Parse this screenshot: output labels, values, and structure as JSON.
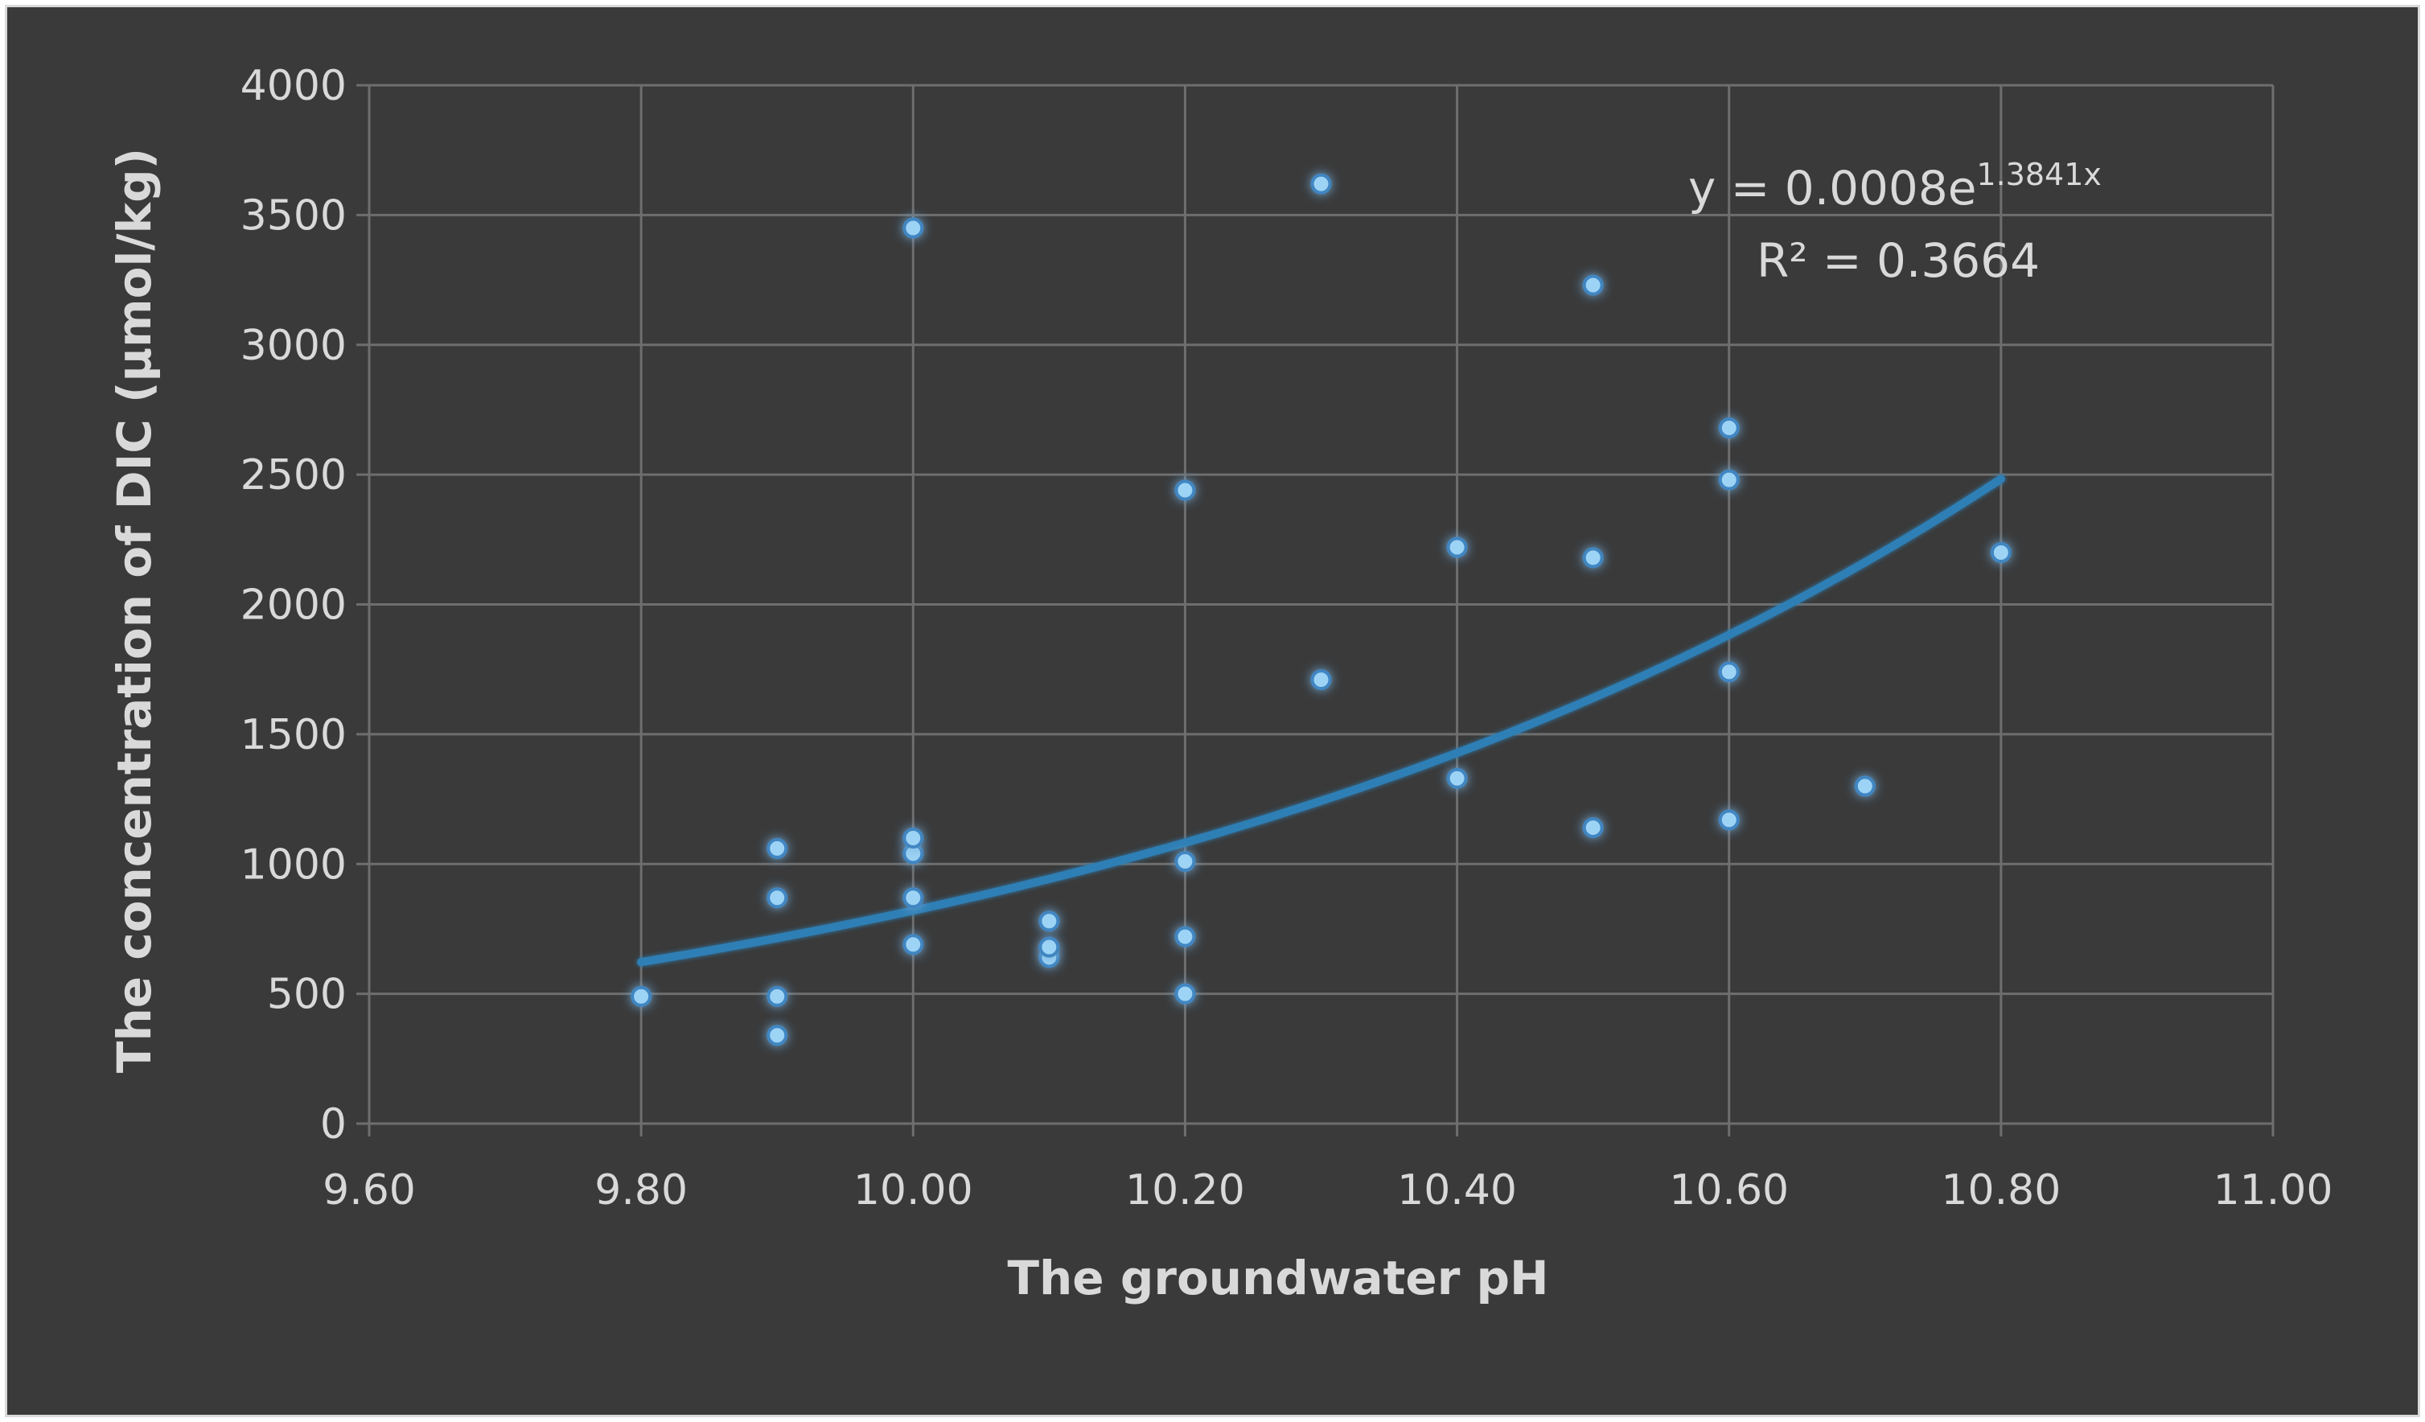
{
  "chart_data": {
    "type": "scatter",
    "xlabel": "The groundwater pH",
    "ylabel": "The concentration of DIC  (μmol/kg)",
    "xlim": [
      9.6,
      11.0
    ],
    "ylim": [
      0,
      4000
    ],
    "x_ticks": [
      9.6,
      9.8,
      10.0,
      10.2,
      10.4,
      10.6,
      10.8,
      11.0
    ],
    "x_tick_labels": [
      "9.60",
      "9.80",
      "10.00",
      "10.20",
      "10.40",
      "10.60",
      "10.80",
      "11.00"
    ],
    "y_ticks": [
      0,
      500,
      1000,
      1500,
      2000,
      2500,
      3000,
      3500,
      4000
    ],
    "y_tick_labels": [
      "0",
      "500",
      "1000",
      "1500",
      "2000",
      "2500",
      "3000",
      "3500",
      "4000"
    ],
    "grid": true,
    "marker_color": "#9dd3f5",
    "trendline_color": "#2e7fb5",
    "background_color": "#3a3a3a",
    "series": [
      {
        "points": [
          {
            "x": 9.8,
            "y": 490
          },
          {
            "x": 9.9,
            "y": 340
          },
          {
            "x": 9.9,
            "y": 490
          },
          {
            "x": 9.9,
            "y": 870
          },
          {
            "x": 9.9,
            "y": 1060
          },
          {
            "x": 10.0,
            "y": 690
          },
          {
            "x": 10.0,
            "y": 870
          },
          {
            "x": 10.0,
            "y": 1040
          },
          {
            "x": 10.0,
            "y": 1100
          },
          {
            "x": 10.0,
            "y": 3450
          },
          {
            "x": 10.1,
            "y": 640
          },
          {
            "x": 10.1,
            "y": 680
          },
          {
            "x": 10.1,
            "y": 780
          },
          {
            "x": 10.2,
            "y": 500
          },
          {
            "x": 10.2,
            "y": 720
          },
          {
            "x": 10.2,
            "y": 1010
          },
          {
            "x": 10.2,
            "y": 2440
          },
          {
            "x": 10.3,
            "y": 1710
          },
          {
            "x": 10.3,
            "y": 3620
          },
          {
            "x": 10.4,
            "y": 1330
          },
          {
            "x": 10.4,
            "y": 2220
          },
          {
            "x": 10.5,
            "y": 1140
          },
          {
            "x": 10.5,
            "y": 2180
          },
          {
            "x": 10.5,
            "y": 3230
          },
          {
            "x": 10.6,
            "y": 1170
          },
          {
            "x": 10.6,
            "y": 1740
          },
          {
            "x": 10.6,
            "y": 2480
          },
          {
            "x": 10.6,
            "y": 2680
          },
          {
            "x": 10.7,
            "y": 1300
          },
          {
            "x": 10.8,
            "y": 2200
          }
        ]
      }
    ],
    "trendline": {
      "type": "exponential",
      "coefficient": 0.0008,
      "exponent": 1.3841,
      "x_range": [
        9.8,
        10.8
      ],
      "equation_main": "y = 0.0008e",
      "equation_sup": "1.3841x",
      "r_squared_label": "R² = 0.3664"
    }
  }
}
